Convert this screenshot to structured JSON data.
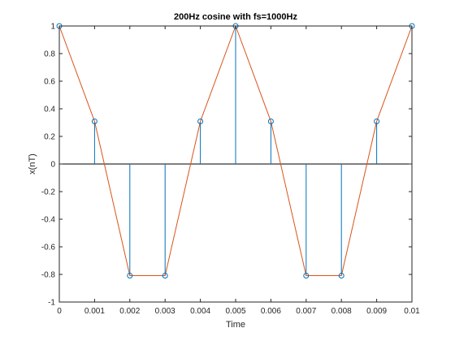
{
  "chart_data": {
    "type": "stem+line",
    "title": "200Hz cosine with fs=1000Hz",
    "xlabel": "Time",
    "ylabel": "x(nT)",
    "xlim": [
      0,
      0.01
    ],
    "ylim": [
      -1,
      1
    ],
    "x_ticks": [
      0,
      0.001,
      0.002,
      0.003,
      0.004,
      0.005,
      0.006,
      0.007,
      0.008,
      0.009,
      0.01
    ],
    "x_tick_labels": [
      "0",
      "0.001",
      "0.002",
      "0.003",
      "0.004",
      "0.005",
      "0.006",
      "0.007",
      "0.008",
      "0.009",
      "0.01"
    ],
    "y_ticks": [
      -1,
      -0.8,
      -0.6,
      -0.4,
      -0.2,
      0,
      0.2,
      0.4,
      0.6,
      0.8,
      1
    ],
    "y_tick_labels": [
      "-1",
      "-0.8",
      "-0.6",
      "-0.4",
      "-0.2",
      "0",
      "0.2",
      "0.4",
      "0.6",
      "0.8",
      "1"
    ],
    "grid": false,
    "legend": "none",
    "x": [
      0,
      0.001,
      0.002,
      0.003,
      0.004,
      0.005,
      0.006,
      0.007,
      0.008,
      0.009,
      0.01
    ],
    "series": [
      {
        "kind": "stem",
        "values": [
          1,
          0.309,
          -0.809,
          -0.809,
          0.309,
          1,
          0.309,
          -0.809,
          -0.809,
          0.309,
          1
        ],
        "color": "#0072bd",
        "marker": "circle"
      },
      {
        "kind": "line",
        "values": [
          1,
          0.309,
          -0.809,
          -0.809,
          0.309,
          1,
          0.309,
          -0.809,
          -0.809,
          0.309,
          1
        ],
        "color": "#d95319"
      }
    ]
  }
}
